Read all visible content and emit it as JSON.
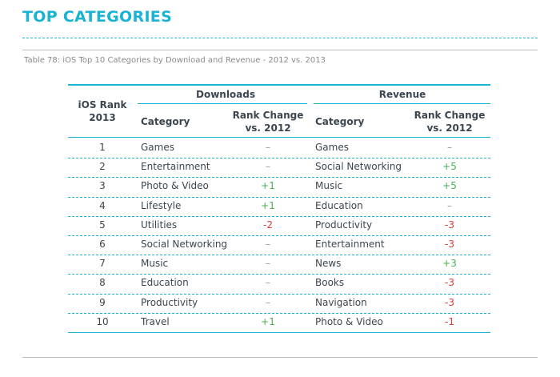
{
  "header": {
    "title": "TOP CATEGORIES"
  },
  "table": {
    "caption": "Table 78: iOS Top 10 Categories by Download and Revenue - 2012 vs. 2013",
    "rank_header": "iOS Rank 2013",
    "groups": [
      "Downloads",
      "Revenue"
    ],
    "sub_headers": [
      "Category",
      "Rank Change vs. 2012",
      "Category",
      "Rank Change vs. 2012"
    ],
    "rows": [
      [
        1,
        "Games",
        "–",
        "Games",
        "–"
      ],
      [
        2,
        "Entertainment",
        "–",
        "Social Networking",
        "+5"
      ],
      [
        3,
        "Photo & Video",
        "+1",
        "Music",
        "+5"
      ],
      [
        4,
        "Lifestyle",
        "+1",
        "Education",
        "–"
      ],
      [
        5,
        "Utilities",
        "-2",
        "Productivity",
        "-3"
      ],
      [
        6,
        "Social Networking",
        "–",
        "Entertainment",
        "-3"
      ],
      [
        7,
        "Music",
        "–",
        "News",
        "+3"
      ],
      [
        8,
        "Education",
        "–",
        "Books",
        "-3"
      ],
      [
        9,
        "Productivity",
        "–",
        "Navigation",
        "-3"
      ],
      [
        10,
        "Travel",
        "+1",
        "Photo & Video",
        "-1"
      ]
    ]
  }
}
